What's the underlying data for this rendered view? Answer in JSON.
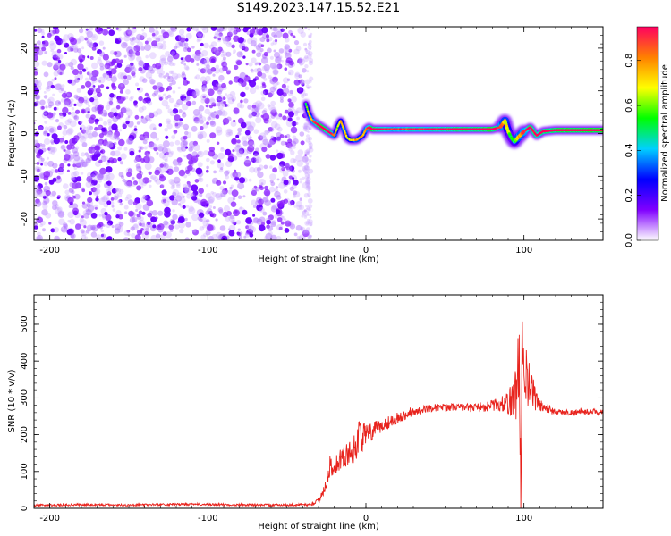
{
  "title": "S149.2023.147.15.52.E21",
  "chart_data": [
    {
      "type": "heatmap",
      "xlabel": "Height of straight line (km)",
      "ylabel": "Frequency (Hz)",
      "xlim": [
        -210,
        150
      ],
      "ylim": [
        -25,
        25
      ],
      "xticks": [
        -200,
        -100,
        0,
        100
      ],
      "yticks": [
        -20,
        -10,
        0,
        10,
        20
      ],
      "colorbar": {
        "label": "Normalized spectral amplitude",
        "range": [
          0,
          0.95
        ],
        "ticks": [
          "0.0",
          "0.2",
          "0.4",
          "0.6",
          "0.8"
        ],
        "colormap": [
          "#ffffff",
          "#8000ff",
          "#0000ff",
          "#00d0ff",
          "#00ff00",
          "#ffff00",
          "#ff8000",
          "#ff0060"
        ]
      },
      "noise_region_x": [
        -210,
        -38
      ],
      "ridge": {
        "x": [
          -38,
          -36,
          -34,
          -32,
          -30,
          -28,
          -26,
          -24,
          -22,
          -20,
          -18,
          -16,
          -14,
          -12,
          -10,
          -8,
          -6,
          -4,
          -2,
          0,
          2,
          4,
          6,
          10,
          20,
          40,
          60,
          80,
          85,
          88,
          90,
          92,
          94,
          96,
          100,
          104,
          108,
          112,
          120,
          150
        ],
        "freq": [
          7,
          4.5,
          3,
          2.5,
          2,
          1.5,
          1,
          0.5,
          0,
          -0.5,
          1.5,
          3,
          1,
          -1,
          -1.5,
          -1.5,
          -1.5,
          -1,
          -0.5,
          1,
          1.5,
          1,
          1,
          1,
          1,
          1,
          1,
          1,
          1.5,
          3,
          0.5,
          -1,
          -2,
          -1,
          0.5,
          1.5,
          -0.5,
          0.5,
          0.8,
          0.8
        ],
        "amplitude": [
          0.3,
          0.5,
          0.6,
          0.7,
          0.8,
          0.9,
          0.85,
          0.75,
          0.8,
          0.6,
          0.4,
          0.5,
          0.55,
          0.5,
          0.45,
          0.5,
          0.6,
          0.55,
          0.5,
          0.6,
          0.7,
          0.9,
          0.8,
          0.75,
          0.7,
          0.75,
          0.8,
          0.85,
          0.7,
          0.5,
          0.45,
          0.3,
          0.25,
          0.5,
          0.7,
          0.8,
          0.75,
          0.8,
          0.85,
          0.9
        ]
      }
    },
    {
      "type": "line",
      "xlabel": "Height of straight line (km)",
      "ylabel": "SNR (10 * v/v)",
      "xlim": [
        -210,
        150
      ],
      "ylim": [
        0,
        580
      ],
      "xticks": [
        -200,
        -100,
        0,
        100
      ],
      "yticks": [
        0,
        100,
        200,
        300,
        400,
        500
      ],
      "series": [
        {
          "color": "#e8231d",
          "x": [
            -210,
            -180,
            -150,
            -120,
            -90,
            -60,
            -35,
            -30,
            -25,
            -22,
            -18,
            -14,
            -10,
            -6,
            -4,
            -2,
            0,
            5,
            10,
            20,
            30,
            40,
            50,
            60,
            70,
            80,
            85,
            90,
            93,
            95,
            96,
            97,
            98,
            99,
            100,
            102,
            105,
            110,
            120,
            130,
            140,
            150
          ],
          "y": [
            8,
            10,
            9,
            11,
            10,
            9,
            10,
            20,
            70,
            110,
            125,
            140,
            150,
            170,
            210,
            190,
            200,
            210,
            225,
            245,
            262,
            272,
            275,
            275,
            272,
            280,
            282,
            285,
            300,
            320,
            350,
            420,
            40,
            520,
            300,
            350,
            320,
            280,
            262,
            260,
            262,
            262
          ],
          "noise": [
            3,
            3,
            3,
            3,
            3,
            3,
            3,
            8,
            20,
            25,
            25,
            30,
            35,
            40,
            50,
            40,
            30,
            25,
            20,
            15,
            10,
            10,
            10,
            10,
            12,
            15,
            20,
            30,
            60,
            80,
            100,
            120,
            60,
            150,
            80,
            70,
            50,
            20,
            8,
            8,
            8,
            8
          ]
        }
      ]
    }
  ]
}
